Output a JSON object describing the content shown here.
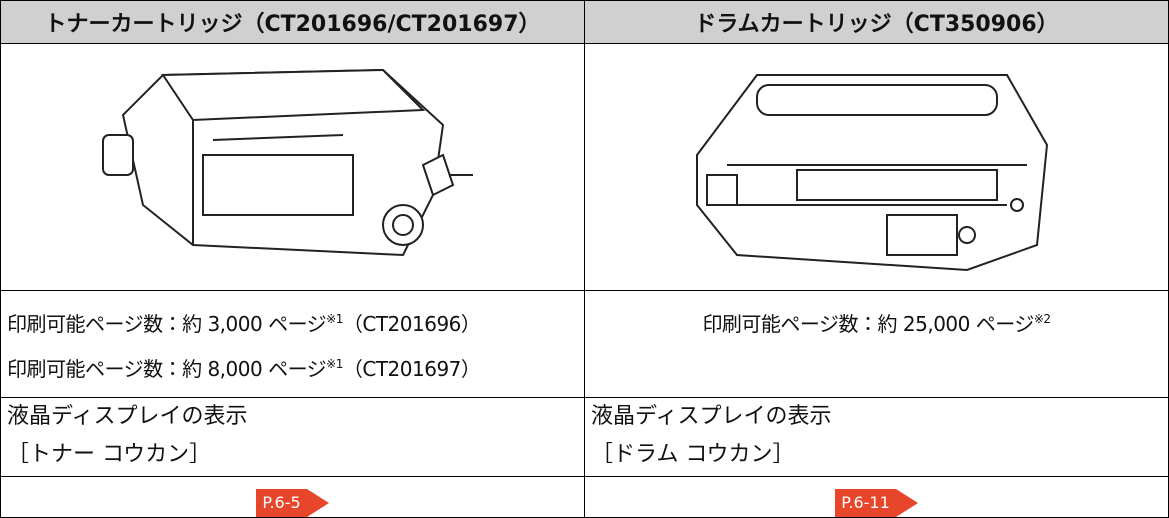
{
  "table": {
    "headers": [
      "トナーカートリッジ（CT201696/CT201697）",
      "ドラムカートリッジ（CT350906）"
    ],
    "yield": [
      [
        {
          "text": "印刷可能ページ数：約 3,000 ページ",
          "note": "※1",
          "model": "（CT201696）"
        },
        {
          "text": "印刷可能ページ数：約 8,000 ページ",
          "note": "※1",
          "model": "（CT201697）"
        }
      ],
      [
        {
          "text": "印刷可能ページ数：約 25,000 ページ",
          "note": "※2"
        }
      ]
    ],
    "display": [
      [
        "液晶ディスプレイの表示",
        "［トナー コウカン］"
      ],
      [
        "液晶ディスプレイの表示",
        "［ドラム コウカン］"
      ]
    ],
    "links": [
      "P.6-5",
      "P.6-11"
    ]
  }
}
